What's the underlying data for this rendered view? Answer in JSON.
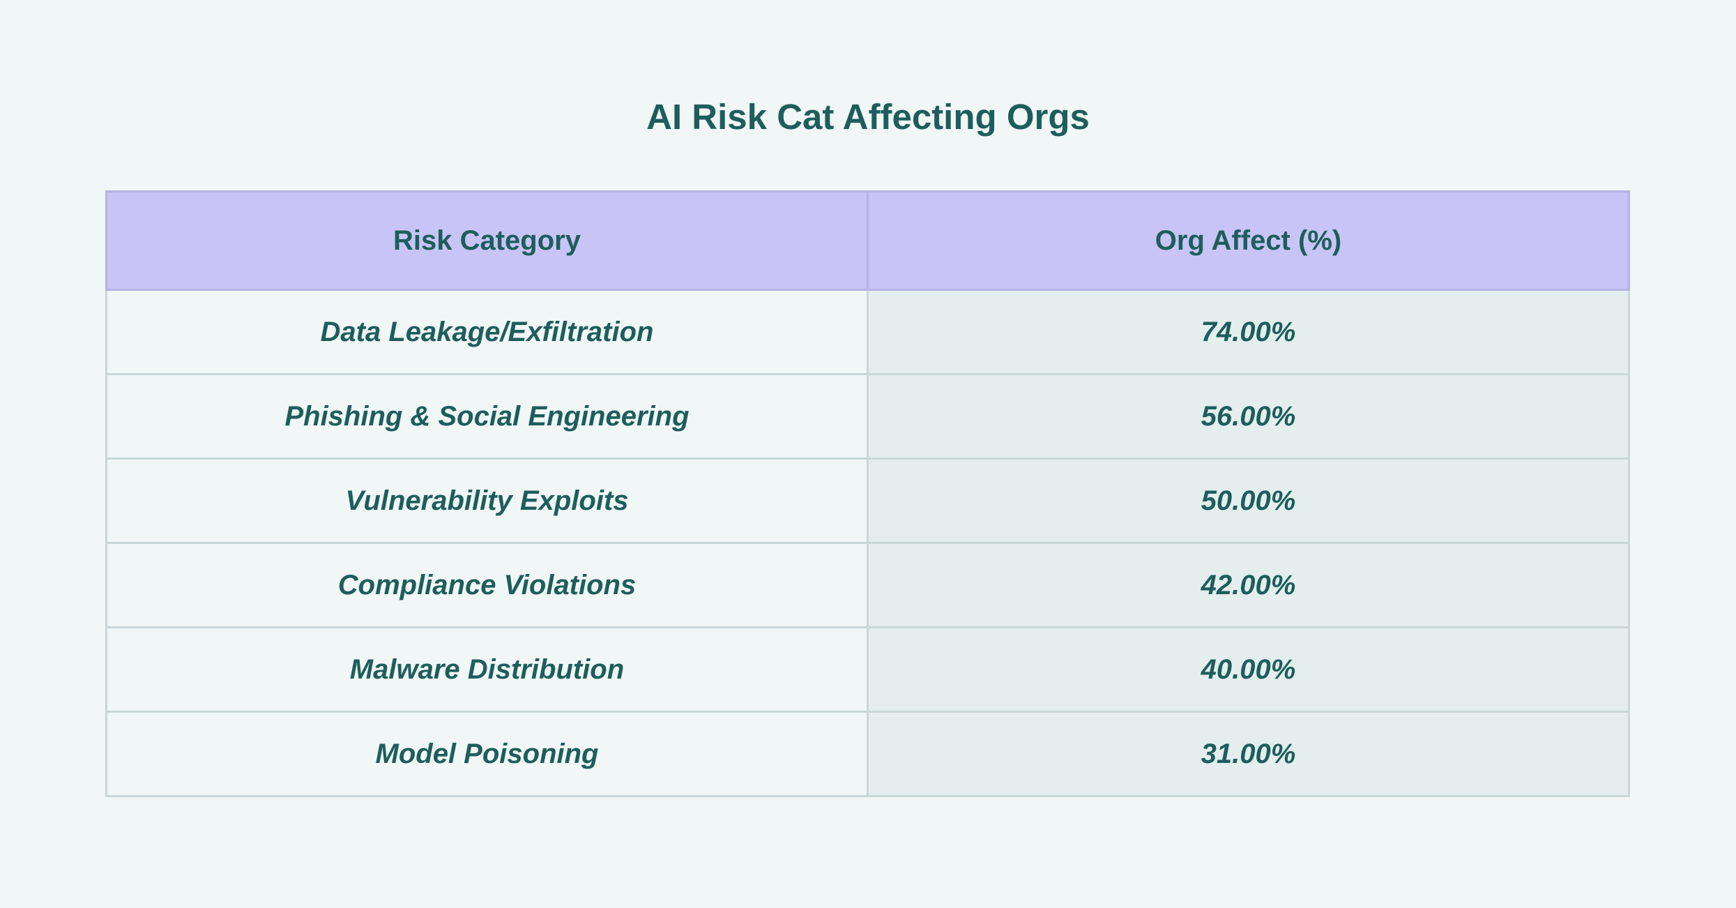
{
  "title": "AI Risk Cat Affecting Orgs",
  "chart_data": {
    "type": "table",
    "title": "AI Risk Cat Affecting Orgs",
    "columns": [
      "Risk Category",
      "Org Affect (%)"
    ],
    "rows": [
      {
        "category": "Data Leakage/Exfiltration",
        "value": "74.00%"
      },
      {
        "category": "Phishing & Social Engineering",
        "value": "56.00%"
      },
      {
        "category": "Vulnerability Exploits",
        "value": "50.00%"
      },
      {
        "category": "Compliance Violations",
        "value": "42.00%"
      },
      {
        "category": "Malware Distribution",
        "value": "40.00%"
      },
      {
        "category": "Model Poisoning",
        "value": "31.00%"
      }
    ],
    "values": [
      74.0,
      56.0,
      50.0,
      42.0,
      40.0,
      31.0
    ],
    "unit": "%"
  },
  "colors": {
    "background": "#f1f6f6",
    "text": "#1d5e5c",
    "header_background": "#c8c4f6",
    "value_column_background": "#e4eeef",
    "border": "#c9d7d8"
  }
}
